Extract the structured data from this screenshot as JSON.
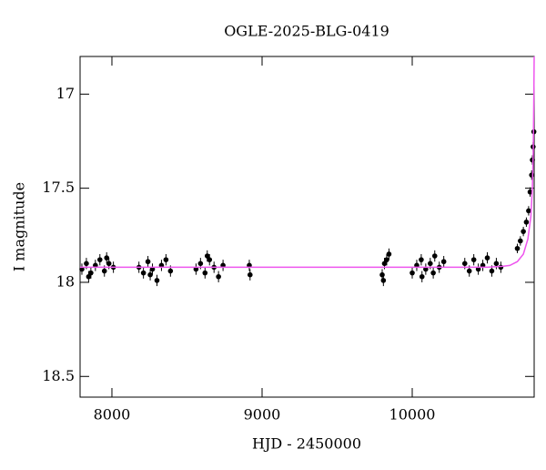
{
  "chart_data": {
    "type": "scatter",
    "title": "OGLE-2025-BLG-0419",
    "x_label": "HJD - 2450000",
    "y_label": "I magnitude",
    "xlim": [
      7788,
      10812
    ],
    "ylim": [
      18.61,
      16.8
    ],
    "xticks": [
      8000,
      9000,
      10000
    ],
    "yticks": [
      17,
      17.5,
      18,
      18.5
    ],
    "series": [
      {
        "kind": "points",
        "color": "#000000",
        "x": [
          7800,
          7830,
          7860,
          7890,
          7920,
          7950,
          7980,
          8010,
          7845,
          7965,
          8180,
          8210,
          8240,
          8270,
          8300,
          8330,
          8360,
          8390,
          8255,
          8560,
          8590,
          8620,
          8650,
          8680,
          8710,
          8740,
          8635,
          8915,
          8920,
          9800,
          9815,
          9830,
          9845,
          9808,
          10000,
          10030,
          10060,
          10090,
          10120,
          10150,
          10180,
          10210,
          10065,
          10140,
          10350,
          10380,
          10410,
          10440,
          10470,
          10500,
          10530,
          10560,
          10590,
          10700,
          10720,
          10740,
          10760,
          10775,
          10785,
          10795,
          10800,
          10805,
          10810
        ],
        "values": [
          17.93,
          17.9,
          17.95,
          17.91,
          17.88,
          17.94,
          17.9,
          17.92,
          17.97,
          17.87,
          17.92,
          17.95,
          17.89,
          17.93,
          17.99,
          17.91,
          17.88,
          17.94,
          17.96,
          17.93,
          17.9,
          17.95,
          17.88,
          17.92,
          17.97,
          17.91,
          17.86,
          17.91,
          17.96,
          17.96,
          17.9,
          17.88,
          17.85,
          17.99,
          17.95,
          17.91,
          17.88,
          17.93,
          17.9,
          17.86,
          17.92,
          17.89,
          17.97,
          17.95,
          17.9,
          17.94,
          17.88,
          17.93,
          17.91,
          17.87,
          17.94,
          17.9,
          17.92,
          17.82,
          17.78,
          17.73,
          17.68,
          17.62,
          17.52,
          17.43,
          17.35,
          17.28,
          17.2
        ],
        "errors": [
          0.03,
          0.03,
          0.03,
          0.03,
          0.03,
          0.03,
          0.03,
          0.03,
          0.03,
          0.03,
          0.03,
          0.03,
          0.03,
          0.03,
          0.03,
          0.03,
          0.03,
          0.03,
          0.03,
          0.03,
          0.03,
          0.03,
          0.03,
          0.03,
          0.03,
          0.03,
          0.03,
          0.03,
          0.03,
          0.03,
          0.03,
          0.03,
          0.03,
          0.03,
          0.03,
          0.03,
          0.03,
          0.03,
          0.03,
          0.03,
          0.03,
          0.03,
          0.03,
          0.03,
          0.03,
          0.03,
          0.03,
          0.03,
          0.03,
          0.03,
          0.03,
          0.03,
          0.03,
          0.025,
          0.025,
          0.025,
          0.025,
          0.025,
          0.025,
          0.025,
          0.025,
          0.025,
          0.025
        ]
      },
      {
        "kind": "line",
        "color": "#ee55ee",
        "x": [
          7788,
          10500,
          10600,
          10650,
          10700,
          10740,
          10770,
          10790,
          10800,
          10806,
          10810,
          10812
        ],
        "values": [
          17.92,
          17.92,
          17.915,
          17.91,
          17.89,
          17.85,
          17.77,
          17.65,
          17.5,
          17.3,
          17.0,
          16.8
        ]
      }
    ]
  }
}
